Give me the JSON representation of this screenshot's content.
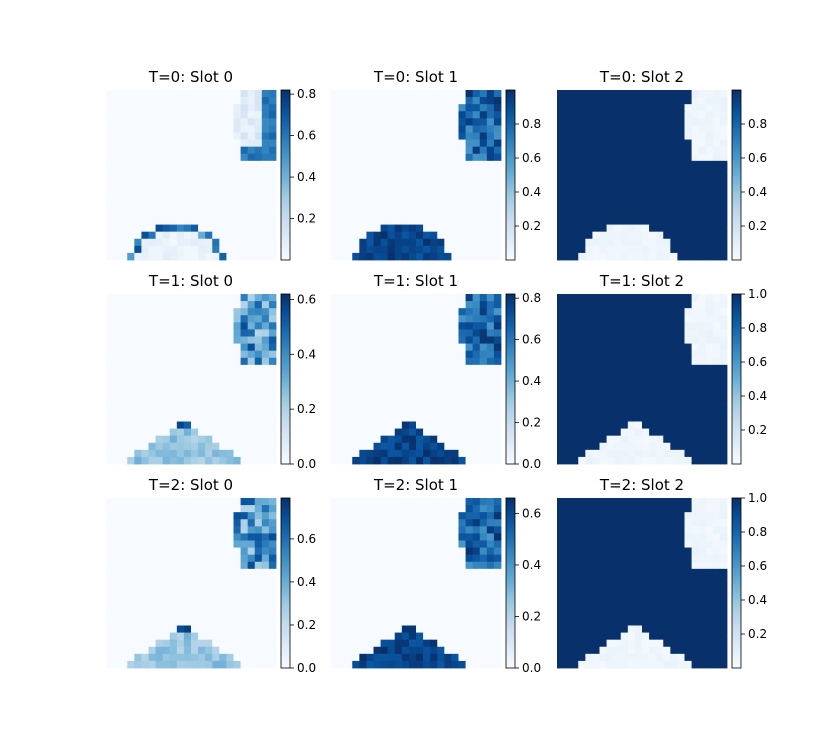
{
  "chart_data": {
    "type": "heatmap",
    "colormap": "Blues",
    "grid": false,
    "layout": "3x3",
    "panels": [
      {
        "title": "T=0: Slot 0",
        "vmin": 0.0,
        "vmax": 0.82,
        "ticks": [
          "0.2",
          "0.4",
          "0.6",
          "0.8"
        ],
        "tick_values": [
          0.2,
          0.4,
          0.6,
          0.8
        ],
        "pattern": "edges"
      },
      {
        "title": "T=0: Slot 1",
        "vmin": 0.0,
        "vmax": 1.0,
        "ticks": [
          "0.2",
          "0.4",
          "0.6",
          "0.8"
        ],
        "tick_values": [
          0.2,
          0.4,
          0.6,
          0.8
        ],
        "pattern": "objects"
      },
      {
        "title": "T=0: Slot 2",
        "vmin": 0.0,
        "vmax": 1.0,
        "ticks": [
          "0.2",
          "0.4",
          "0.6",
          "0.8"
        ],
        "tick_values": [
          0.2,
          0.4,
          0.6,
          0.8
        ],
        "pattern": "background"
      },
      {
        "title": "T=1: Slot 0",
        "vmin": 0.0,
        "vmax": 0.62,
        "ticks": [
          "0.0",
          "0.2",
          "0.4",
          "0.6"
        ],
        "tick_values": [
          0.0,
          0.2,
          0.4,
          0.6
        ],
        "pattern": "mid"
      },
      {
        "title": "T=1: Slot 1",
        "vmin": 0.0,
        "vmax": 0.82,
        "ticks": [
          "0.0",
          "0.2",
          "0.4",
          "0.6",
          "0.8"
        ],
        "tick_values": [
          0.0,
          0.2,
          0.4,
          0.6,
          0.8
        ],
        "pattern": "objects"
      },
      {
        "title": "T=1: Slot 2",
        "vmin": 0.0,
        "vmax": 1.0,
        "ticks": [
          "0.2",
          "0.4",
          "0.6",
          "0.8",
          "1.0"
        ],
        "tick_values": [
          0.2,
          0.4,
          0.6,
          0.8,
          1.0
        ],
        "pattern": "background"
      },
      {
        "title": "T=2: Slot 0",
        "vmin": 0.0,
        "vmax": 0.79,
        "ticks": [
          "0.0",
          "0.2",
          "0.4",
          "0.6"
        ],
        "tick_values": [
          0.0,
          0.2,
          0.4,
          0.6
        ],
        "pattern": "mid"
      },
      {
        "title": "T=2: Slot 1",
        "vmin": 0.0,
        "vmax": 0.66,
        "ticks": [
          "0.0",
          "0.2",
          "0.4",
          "0.6"
        ],
        "tick_values": [
          0.0,
          0.2,
          0.4,
          0.6
        ],
        "pattern": "objects"
      },
      {
        "title": "T=2: Slot 2",
        "vmin": 0.0,
        "vmax": 1.0,
        "ticks": [
          "0.2",
          "0.4",
          "0.6",
          "0.8",
          "1.0"
        ],
        "tick_values": [
          0.2,
          0.4,
          0.6,
          0.8,
          1.0
        ],
        "pattern": "background"
      }
    ]
  }
}
